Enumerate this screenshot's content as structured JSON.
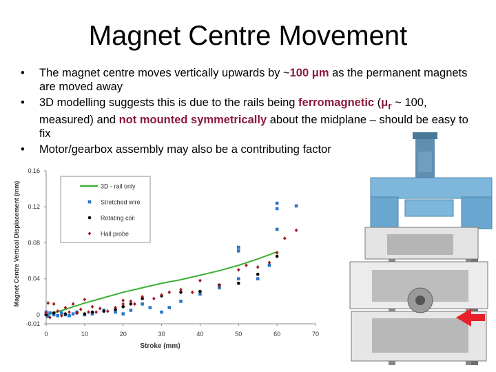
{
  "slide": {
    "title": "Magnet Centre Movement",
    "bullets": [
      {
        "pre": "The magnet centre moves vertically upwards by ~",
        "bold": "100 μm",
        "post": " as the permanent magnets are moved away"
      },
      {
        "pre": "3D modelling suggests this is due to the rails being ",
        "bold1": "ferromagnetic",
        "mid1": "  (",
        "mu": "μ",
        "mu_sub": "r",
        "mid2": " ~ 100, measured) and ",
        "bold2": "not mounted symmetrically",
        "post": " about the midplane – should be easy to fix"
      },
      {
        "text": "Motor/gearbox assembly may also be a contributing factor"
      }
    ]
  },
  "colors": {
    "model": "#3cb034",
    "wire": "#2a78c8",
    "coil": "#000000",
    "hall": "#a01a22",
    "arrow": "#e8202a",
    "emphasis": "#8b1a3a"
  },
  "apparatus": {
    "description_icon": "magnet-assembly-image"
  },
  "chart_data": {
    "type": "scatter",
    "xlabel": "Stroke (mm)",
    "ylabel": "Magnet Centre Vertical Displacement (mm)",
    "xlim": [
      0,
      70
    ],
    "ylim": [
      -0.01,
      0.16
    ],
    "xticks": [
      "0",
      "10",
      "20",
      "30",
      "40",
      "50",
      "60",
      "70"
    ],
    "yticks": [
      "-0.01",
      "0",
      "0.04",
      "0.08",
      "0.12",
      "0.16"
    ],
    "ytick_values": [
      -0.01,
      0,
      0.04,
      0.08,
      0.12,
      0.16
    ],
    "legend_position": "top-left",
    "series": [
      {
        "name": "3D - rail only",
        "marker": "line",
        "x": [
          0,
          5,
          10,
          15,
          20,
          25,
          30,
          35,
          40,
          45,
          50,
          55,
          60
        ],
        "y": [
          0.0,
          0.006,
          0.013,
          0.019,
          0.025,
          0.03,
          0.035,
          0.039,
          0.044,
          0.049,
          0.055,
          0.062,
          0.07
        ]
      },
      {
        "name": "Stretched wire",
        "marker": "square",
        "x": [
          0,
          0,
          0.5,
          1,
          2,
          3,
          4,
          5,
          6,
          7,
          8,
          10,
          12,
          15,
          18,
          20,
          22,
          25,
          27,
          30,
          32,
          35,
          40,
          45,
          50,
          50,
          50,
          55,
          58,
          60,
          60,
          60,
          65
        ],
        "y": [
          0.0,
          0.003,
          -0.002,
          0.002,
          0.0,
          -0.001,
          0.002,
          0.0,
          -0.001,
          0.001,
          0.003,
          0.0,
          0.001,
          0.005,
          0.003,
          0.001,
          0.005,
          0.012,
          0.008,
          0.003,
          0.008,
          0.015,
          0.023,
          0.03,
          0.04,
          0.071,
          0.075,
          0.04,
          0.055,
          0.095,
          0.118,
          0.124,
          0.121
        ]
      },
      {
        "name": "Rotating coil",
        "marker": "circle",
        "x": [
          0,
          2,
          5,
          8,
          10,
          12,
          15,
          18,
          20,
          22,
          25,
          30,
          35,
          40,
          45,
          50,
          55,
          60
        ],
        "y": [
          0.0,
          0.002,
          0.001,
          0.002,
          0.001,
          0.003,
          0.004,
          0.006,
          0.009,
          0.012,
          0.018,
          0.021,
          0.025,
          0.026,
          0.033,
          0.035,
          0.045,
          0.065
        ]
      },
      {
        "name": "Hall probe",
        "marker": "diamond",
        "x": [
          0,
          0.5,
          1,
          2,
          3,
          4,
          5,
          6,
          7,
          8,
          9,
          10,
          11,
          12,
          13,
          14,
          16,
          18,
          20,
          20,
          22,
          23,
          25,
          28,
          30,
          32,
          35,
          38,
          40,
          45,
          50,
          52,
          55,
          58,
          60,
          62,
          65
        ],
        "y": [
          0.002,
          0.013,
          -0.003,
          0.012,
          0.004,
          -0.001,
          0.008,
          0.003,
          0.012,
          0.002,
          0.006,
          0.017,
          0.003,
          0.009,
          0.003,
          0.007,
          0.004,
          0.008,
          0.012,
          0.016,
          0.015,
          0.012,
          0.02,
          0.018,
          0.022,
          0.025,
          0.028,
          0.025,
          0.038,
          0.032,
          0.05,
          0.055,
          0.053,
          0.058,
          0.069,
          0.085,
          0.094
        ]
      }
    ]
  }
}
